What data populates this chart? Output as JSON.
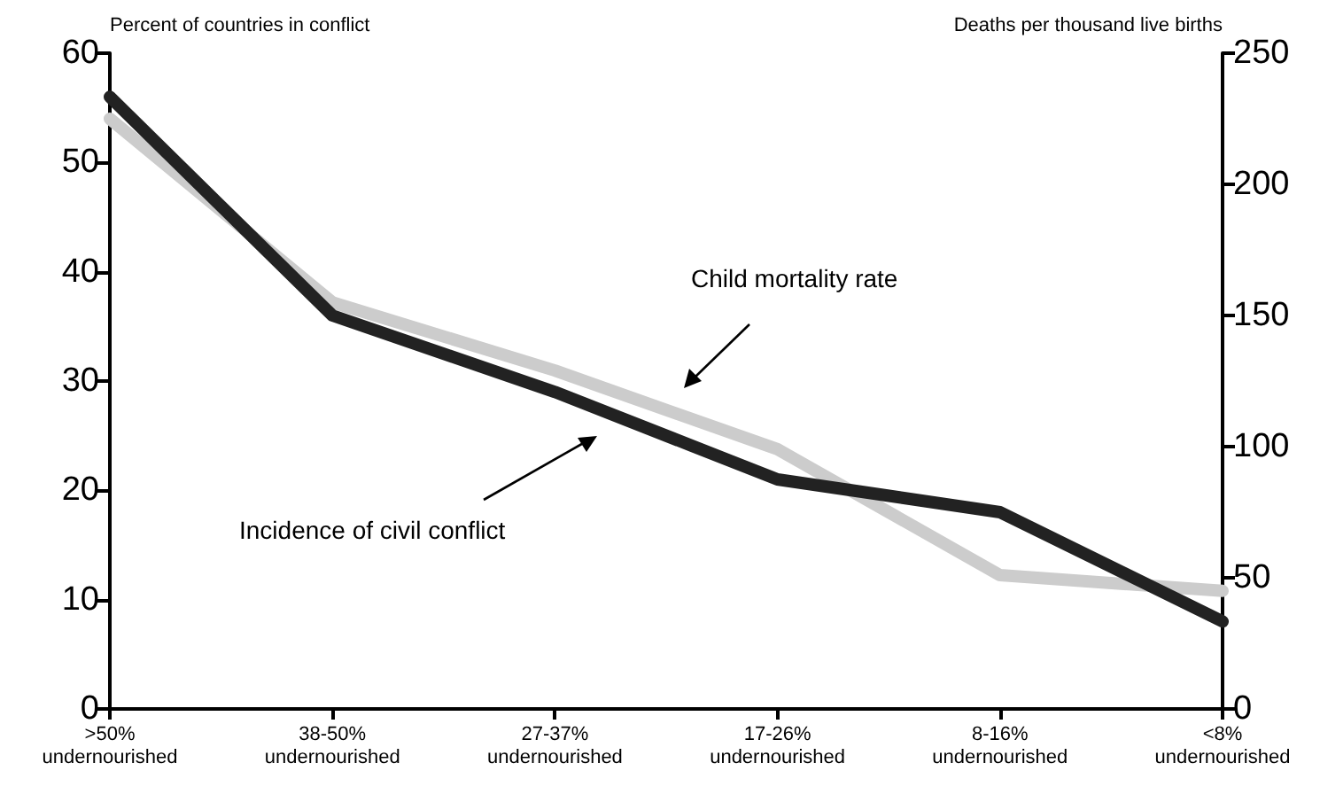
{
  "chart_data": {
    "type": "line",
    "categories": [
      ">50%\nundernourished",
      "38-50%\nundernourished",
      "27-37%\nundernourished",
      "17-26%\nundernourished",
      "8-16%\nundernourished",
      "<8%\nundernourished"
    ],
    "ylabel": "Percent of countries in conflict",
    "y2label": "Deaths per thousand live births",
    "ylim": [
      0,
      60
    ],
    "yticks": [
      0,
      10,
      20,
      30,
      40,
      50,
      60
    ],
    "y2lim": [
      0,
      250
    ],
    "y2ticks": [
      0,
      50,
      100,
      150,
      200,
      250
    ],
    "series": [
      {
        "color": "#cccccc",
        "axis": "y2",
        "values": [
          225,
          155,
          129,
          99,
          51,
          45
        ]
      },
      {
        "color": "#222222",
        "values": [
          56,
          36,
          29,
          21,
          18,
          8
        ]
      }
    ],
    "annotations": [
      "Child mortality rate",
      "Incidence of civil conflict"
    ],
    "grid": false,
    "marker": "none",
    "line_style": "solid"
  }
}
